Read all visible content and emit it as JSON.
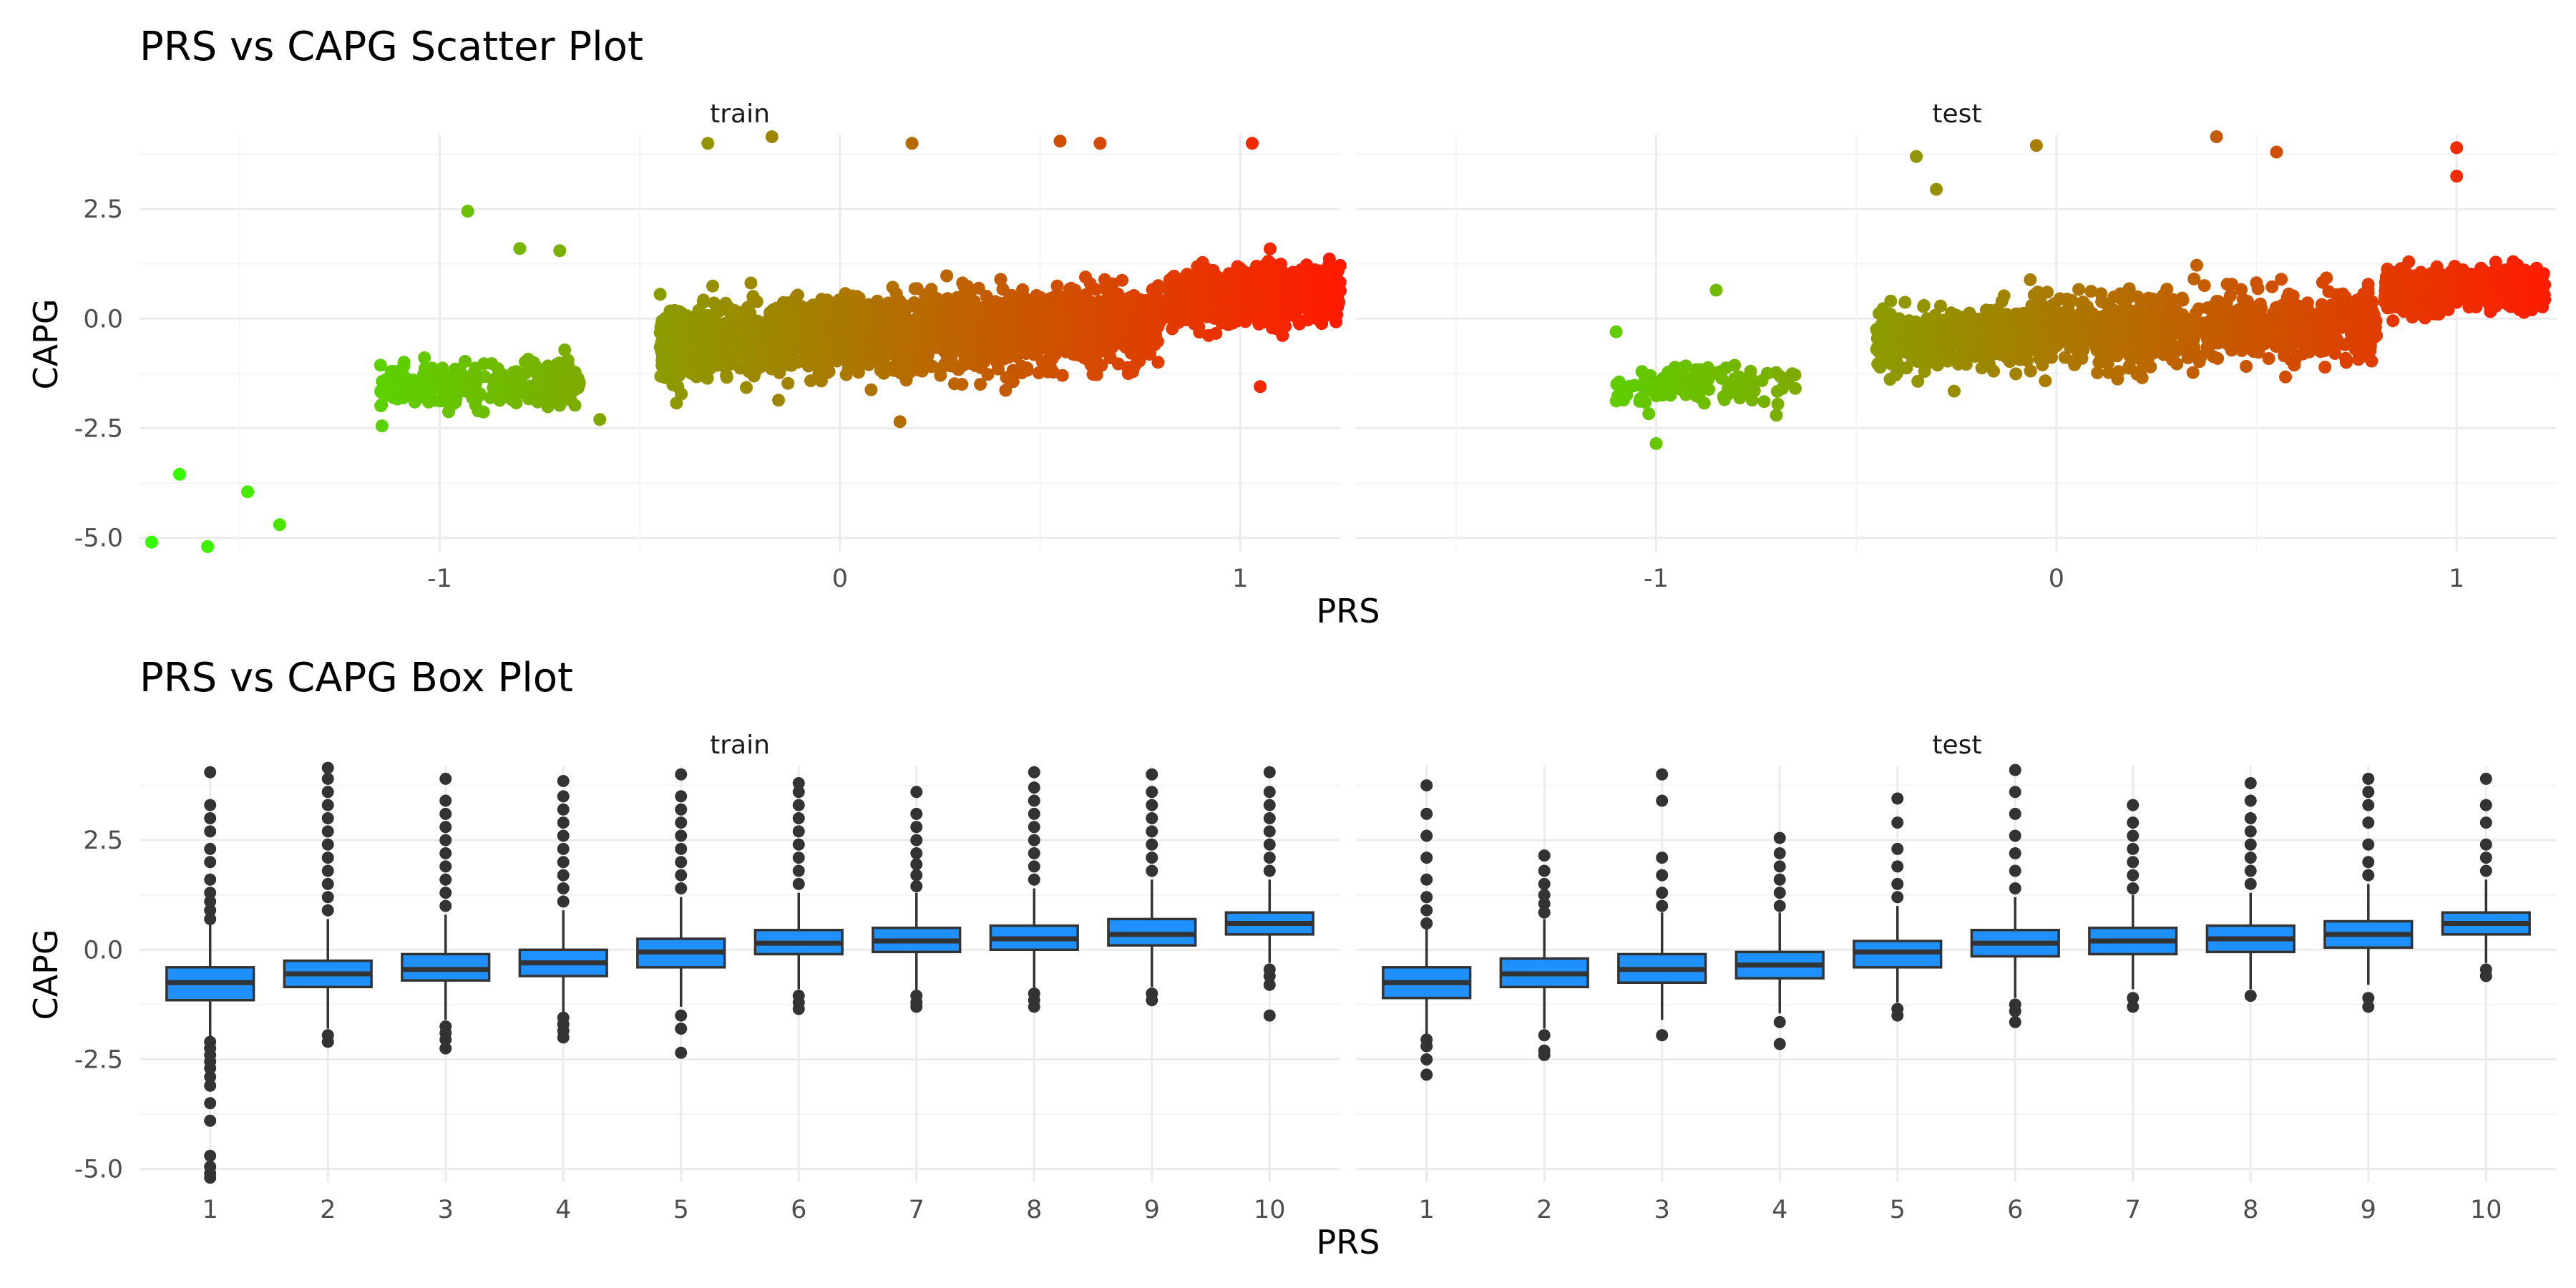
{
  "chart_data": [
    {
      "type": "scatter",
      "title": "PRS vs CAPG Scatter Plot",
      "xlabel": "PRS",
      "ylabel": "CAPG",
      "facets": [
        "train",
        "test"
      ],
      "xlim": [
        -1.75,
        1.25
      ],
      "ylim": [
        -5.3,
        4.2
      ],
      "x_ticks": [
        "-1",
        "0",
        "1"
      ],
      "y_ticks": [
        "-5.0",
        "-2.5",
        "0.0",
        "2.5"
      ],
      "color_scale": {
        "low": "#33ff00",
        "high": "#ff1a00",
        "mapped_to": "PRS"
      },
      "grid": true,
      "panels": [
        {
          "name": "train",
          "clusters": [
            {
              "x_range": [
                -1.15,
                -0.65
              ],
              "y_center": -1.5,
              "y_sd": 0.45,
              "n": 260
            },
            {
              "x_range": [
                -0.45,
                0.8
              ],
              "y_center": -0.35,
              "y_sd": 0.75,
              "n": 2200
            },
            {
              "x_range": [
                0.82,
                1.25
              ],
              "y_center": 0.5,
              "y_sd": 0.55,
              "n": 800
            }
          ],
          "outliers": [
            [
              -1.72,
              -5.1
            ],
            [
              -1.58,
              -5.2
            ],
            [
              -1.65,
              -3.55
            ],
            [
              -1.48,
              -3.95
            ],
            [
              -1.4,
              -4.7
            ],
            [
              -0.93,
              2.45
            ],
            [
              -0.8,
              1.6
            ],
            [
              -0.7,
              1.55
            ],
            [
              -0.33,
              4.0
            ],
            [
              -0.17,
              4.15
            ],
            [
              0.18,
              4.0
            ],
            [
              0.55,
              4.05
            ],
            [
              0.65,
              4.0
            ],
            [
              1.03,
              4.0
            ],
            [
              1.05,
              -1.55
            ],
            [
              0.15,
              -2.35
            ],
            [
              -0.6,
              -2.3
            ]
          ]
        },
        {
          "name": "test",
          "clusters": [
            {
              "x_range": [
                -1.1,
                -0.65
              ],
              "y_center": -1.5,
              "y_sd": 0.45,
              "n": 120
            },
            {
              "x_range": [
                -0.45,
                0.8
              ],
              "y_center": -0.3,
              "y_sd": 0.7,
              "n": 1200
            },
            {
              "x_range": [
                0.82,
                1.22
              ],
              "y_center": 0.65,
              "y_sd": 0.45,
              "n": 450
            }
          ],
          "outliers": [
            [
              -1.1,
              -0.3
            ],
            [
              -0.85,
              0.65
            ],
            [
              -0.35,
              3.7
            ],
            [
              -0.3,
              2.95
            ],
            [
              -0.05,
              3.95
            ],
            [
              0.4,
              4.15
            ],
            [
              0.55,
              3.8
            ],
            [
              1.0,
              3.9
            ],
            [
              1.0,
              3.25
            ],
            [
              -1.0,
              -2.85
            ]
          ]
        }
      ]
    },
    {
      "type": "box",
      "title": "PRS vs CAPG Box Plot",
      "xlabel": "PRS",
      "ylabel": "CAPG",
      "facets": [
        "train",
        "test"
      ],
      "categories": [
        "1",
        "2",
        "3",
        "4",
        "5",
        "6",
        "7",
        "8",
        "9",
        "10"
      ],
      "ylim": [
        -5.3,
        4.2
      ],
      "y_ticks": [
        "-5.0",
        "-2.5",
        "0.0",
        "2.5"
      ],
      "box_fill": "#1e90ff",
      "panels": [
        {
          "name": "train",
          "boxes": [
            {
              "q1": -1.15,
              "median": -0.75,
              "q3": -0.4,
              "whisker_low": -2.0,
              "whisker_high": 0.6,
              "outliers": [
                -2.1,
                -2.25,
                -2.4,
                -2.55,
                -2.7,
                -2.9,
                -3.1,
                -3.5,
                -3.9,
                -4.7,
                -4.95,
                -5.1,
                -5.2,
                0.7,
                0.9,
                1.1,
                1.3,
                1.6,
                2.0,
                2.3,
                2.7,
                3.0,
                3.3,
                4.05
              ]
            },
            {
              "q1": -0.85,
              "median": -0.55,
              "q3": -0.25,
              "whisker_low": -1.8,
              "whisker_high": 0.7,
              "outliers": [
                -1.95,
                -2.1,
                0.9,
                1.2,
                1.5,
                1.8,
                2.1,
                2.4,
                2.7,
                3.0,
                3.3,
                3.6,
                3.9,
                4.15
              ]
            },
            {
              "q1": -0.7,
              "median": -0.45,
              "q3": -0.1,
              "whisker_low": -1.6,
              "whisker_high": 0.8,
              "outliers": [
                -1.75,
                -1.9,
                -2.05,
                -2.25,
                1.0,
                1.3,
                1.6,
                1.9,
                2.2,
                2.5,
                2.8,
                3.1,
                3.4,
                3.9
              ]
            },
            {
              "q1": -0.6,
              "median": -0.3,
              "q3": 0.0,
              "whisker_low": -1.45,
              "whisker_high": 0.9,
              "outliers": [
                -1.55,
                -1.7,
                -1.85,
                -2.0,
                1.1,
                1.4,
                1.7,
                2.0,
                2.3,
                2.6,
                2.9,
                3.2,
                3.5,
                3.85
              ]
            },
            {
              "q1": -0.4,
              "median": -0.05,
              "q3": 0.25,
              "whisker_low": -1.3,
              "whisker_high": 1.2,
              "outliers": [
                -1.5,
                -1.8,
                -2.35,
                1.4,
                1.7,
                2.0,
                2.3,
                2.6,
                2.9,
                3.2,
                3.5,
                4.0
              ]
            },
            {
              "q1": -0.1,
              "median": 0.15,
              "q3": 0.45,
              "whisker_low": -0.9,
              "whisker_high": 1.3,
              "outliers": [
                -1.05,
                -1.2,
                -1.35,
                1.5,
                1.8,
                2.1,
                2.4,
                2.7,
                3.0,
                3.3,
                3.6,
                3.8
              ]
            },
            {
              "q1": -0.05,
              "median": 0.2,
              "q3": 0.5,
              "whisker_low": -0.95,
              "whisker_high": 1.3,
              "outliers": [
                -1.05,
                -1.2,
                -1.3,
                1.45,
                1.7,
                1.95,
                2.2,
                2.5,
                2.8,
                3.1,
                3.6
              ]
            },
            {
              "q1": 0.0,
              "median": 0.25,
              "q3": 0.55,
              "whisker_low": -0.9,
              "whisker_high": 1.4,
              "outliers": [
                -1.0,
                -1.15,
                -1.3,
                1.6,
                1.9,
                2.2,
                2.5,
                2.8,
                3.1,
                3.4,
                3.7,
                4.05
              ]
            },
            {
              "q1": 0.1,
              "median": 0.35,
              "q3": 0.7,
              "whisker_low": -0.85,
              "whisker_high": 1.6,
              "outliers": [
                -1.0,
                -1.15,
                1.8,
                2.1,
                2.4,
                2.7,
                3.0,
                3.3,
                3.6,
                4.0
              ]
            },
            {
              "q1": 0.35,
              "median": 0.6,
              "q3": 0.85,
              "whisker_low": -0.3,
              "whisker_high": 1.6,
              "outliers": [
                -0.45,
                -0.6,
                -0.8,
                -1.5,
                1.8,
                2.1,
                2.4,
                2.7,
                3.0,
                3.3,
                3.6,
                4.05
              ]
            }
          ]
        },
        {
          "name": "test",
          "boxes": [
            {
              "q1": -1.1,
              "median": -0.75,
              "q3": -0.4,
              "whisker_low": -1.95,
              "whisker_high": 0.55,
              "outliers": [
                -2.05,
                -2.2,
                -2.5,
                -2.85,
                0.6,
                0.9,
                1.2,
                1.6,
                2.1,
                2.6,
                3.1,
                3.75
              ]
            },
            {
              "q1": -0.85,
              "median": -0.55,
              "q3": -0.2,
              "whisker_low": -1.8,
              "whisker_high": 0.7,
              "outliers": [
                -1.95,
                -2.3,
                -2.4,
                0.85,
                1.05,
                1.25,
                1.5,
                1.8,
                2.15
              ]
            },
            {
              "q1": -0.75,
              "median": -0.45,
              "q3": -0.1,
              "whisker_low": -1.6,
              "whisker_high": 0.85,
              "outliers": [
                -1.95,
                1.0,
                1.3,
                1.7,
                2.1,
                3.4,
                4.0
              ]
            },
            {
              "q1": -0.65,
              "median": -0.35,
              "q3": -0.05,
              "whisker_low": -1.45,
              "whisker_high": 0.85,
              "outliers": [
                -1.65,
                -2.15,
                1.0,
                1.3,
                1.6,
                1.9,
                2.2,
                2.55
              ]
            },
            {
              "q1": -0.4,
              "median": -0.05,
              "q3": 0.2,
              "whisker_low": -1.2,
              "whisker_high": 1.0,
              "outliers": [
                -1.35,
                -1.5,
                1.2,
                1.5,
                1.9,
                2.3,
                2.9,
                3.45
              ]
            },
            {
              "q1": -0.15,
              "median": 0.15,
              "q3": 0.45,
              "whisker_low": -1.1,
              "whisker_high": 1.2,
              "outliers": [
                -1.25,
                -1.4,
                -1.65,
                1.4,
                1.8,
                2.2,
                2.6,
                3.1,
                3.6,
                4.1
              ]
            },
            {
              "q1": -0.1,
              "median": 0.2,
              "q3": 0.5,
              "whisker_low": -0.9,
              "whisker_high": 1.25,
              "outliers": [
                -1.1,
                -1.3,
                1.4,
                1.7,
                2.0,
                2.3,
                2.6,
                2.9,
                3.3
              ]
            },
            {
              "q1": -0.05,
              "median": 0.25,
              "q3": 0.55,
              "whisker_low": -0.9,
              "whisker_high": 1.3,
              "outliers": [
                -1.05,
                1.5,
                1.8,
                2.1,
                2.4,
                2.7,
                3.0,
                3.4,
                3.8
              ]
            },
            {
              "q1": 0.05,
              "median": 0.35,
              "q3": 0.65,
              "whisker_low": -0.8,
              "whisker_high": 1.5,
              "outliers": [
                -1.1,
                -1.3,
                1.7,
                2.0,
                2.4,
                2.9,
                3.3,
                3.6,
                3.9
              ]
            },
            {
              "q1": 0.35,
              "median": 0.6,
              "q3": 0.85,
              "whisker_low": -0.3,
              "whisker_high": 1.6,
              "outliers": [
                -0.45,
                -0.6,
                1.8,
                2.1,
                2.4,
                2.9,
                3.3,
                3.9
              ]
            }
          ]
        }
      ]
    }
  ]
}
